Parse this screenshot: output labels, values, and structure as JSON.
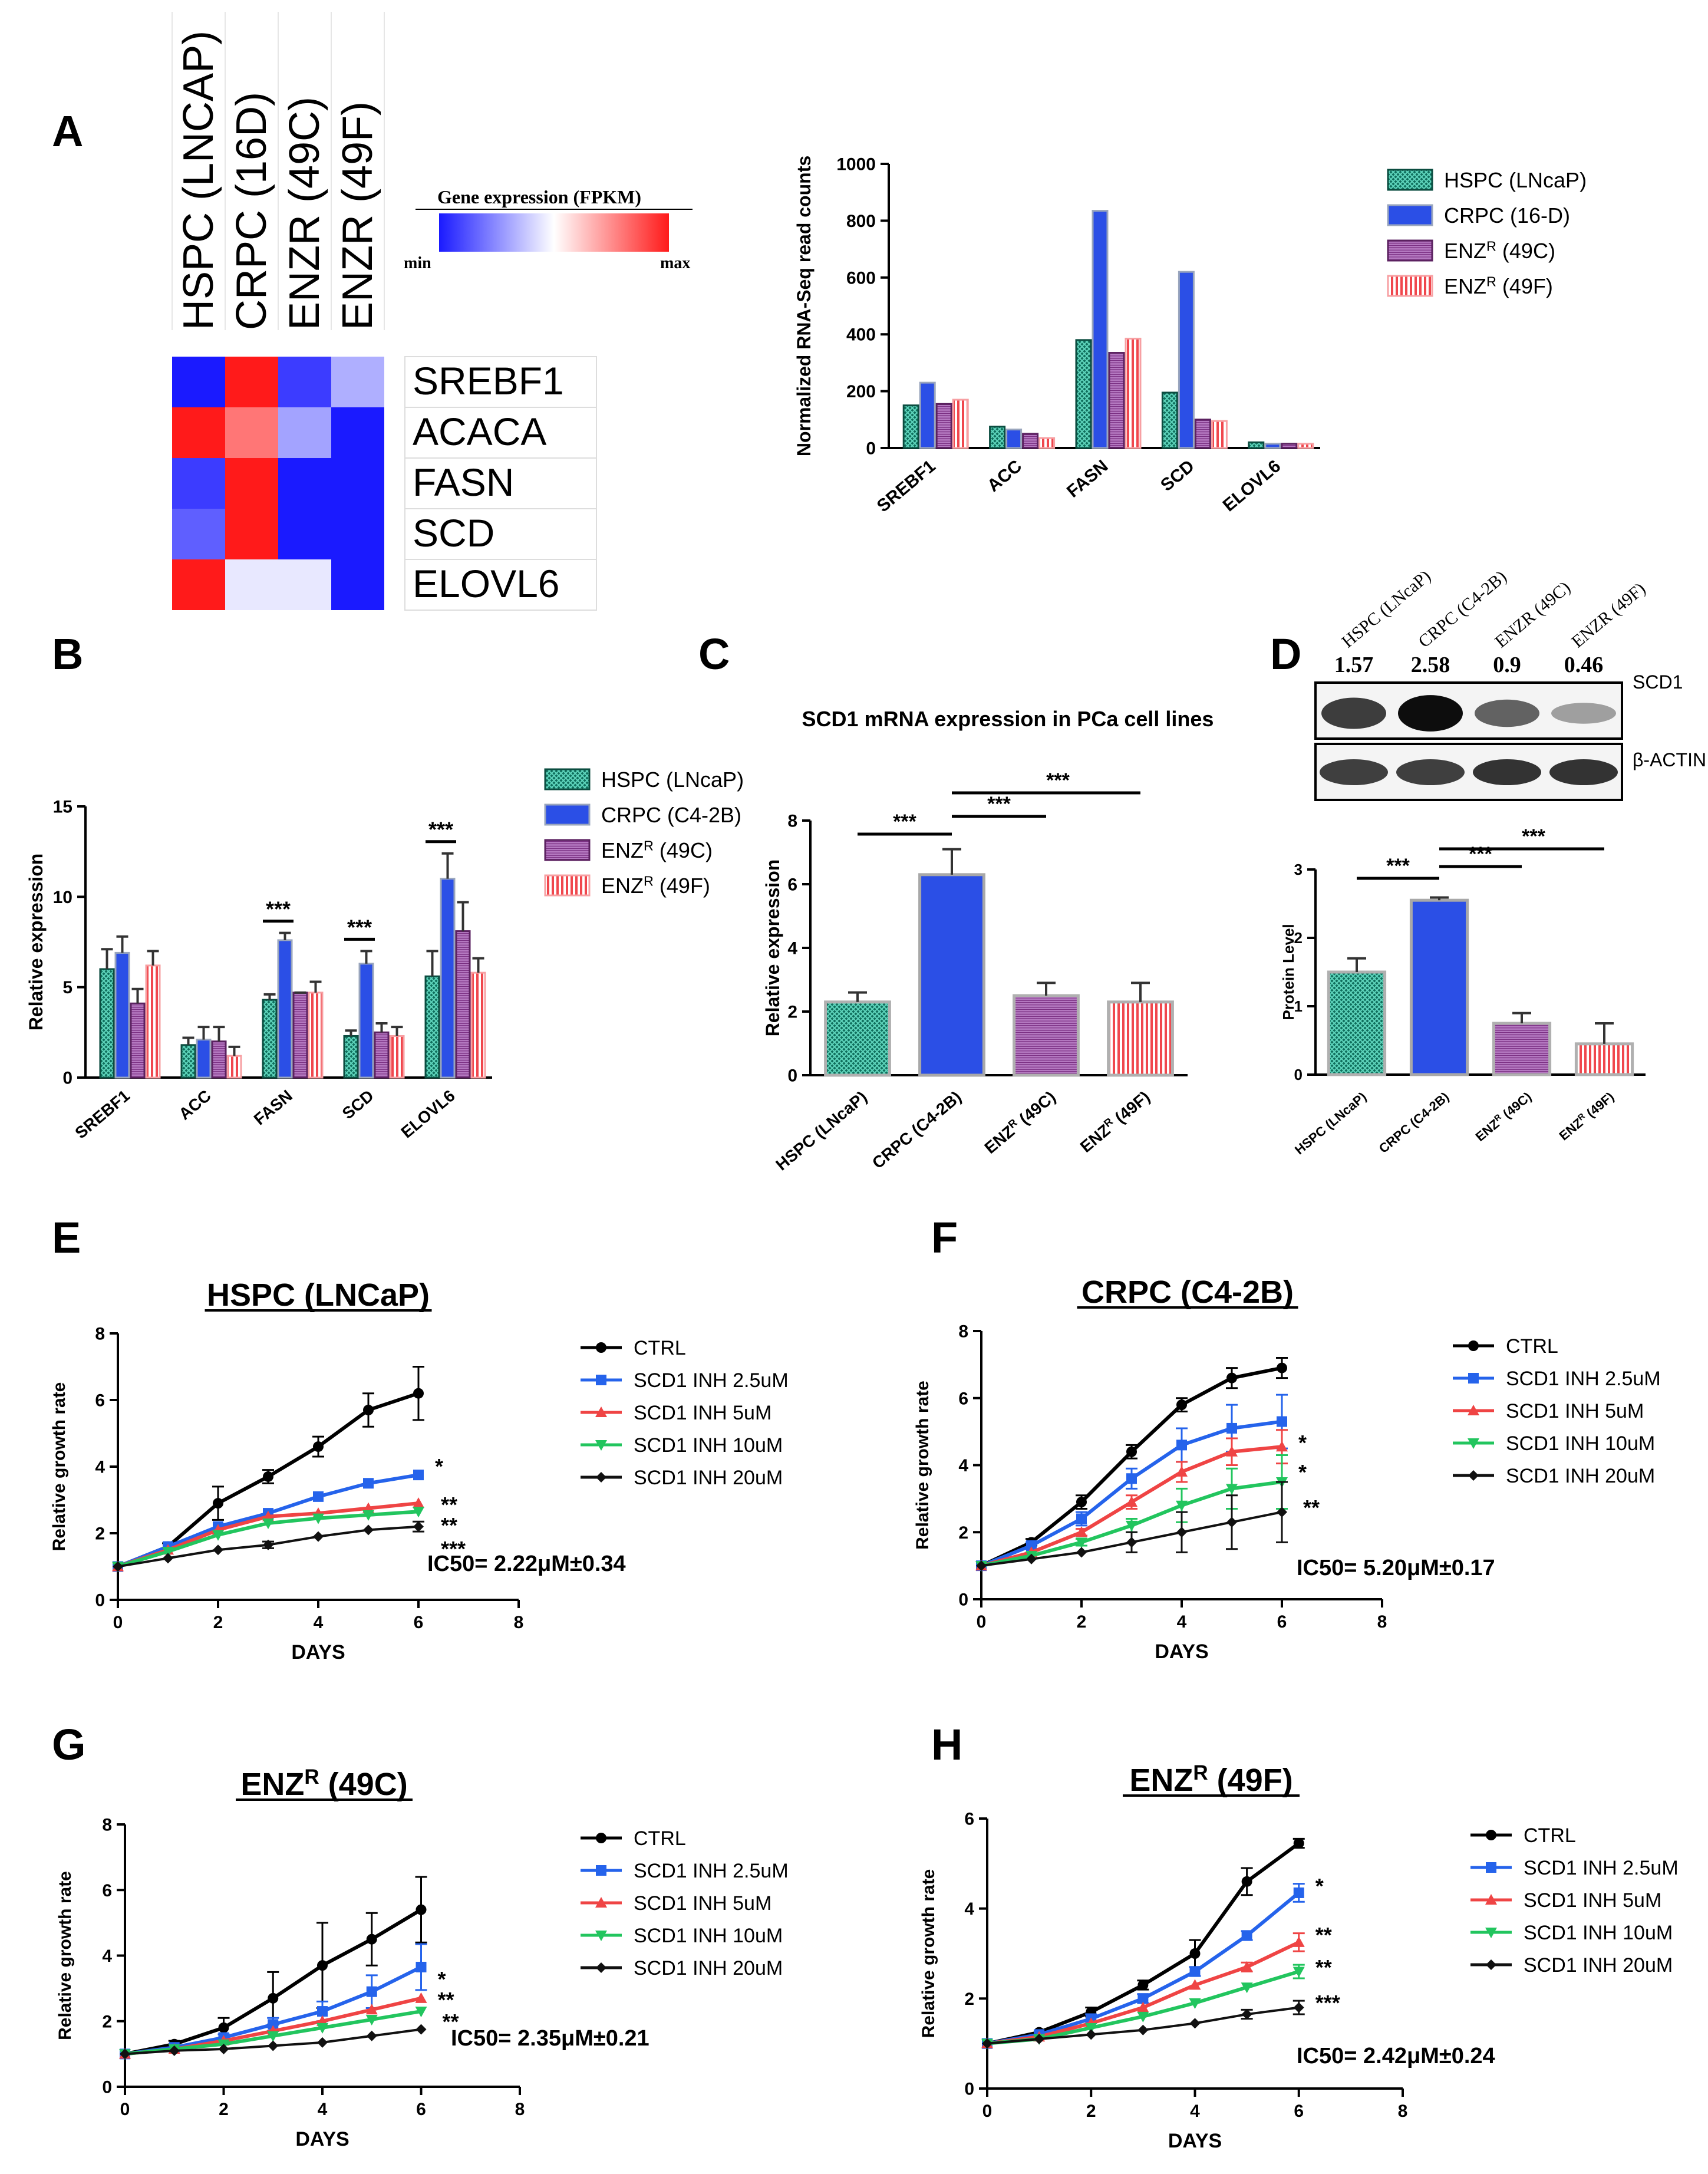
{
  "colors": {
    "hspc": "#1f8f7a",
    "crpc": "#2b4fe6",
    "enz49c": "#8b3a8f",
    "enz49f": "#f26d6d",
    "ctrl": "#000000",
    "inh25": "#2563eb",
    "inh5": "#ef4444",
    "inh10": "#22c55e",
    "inh20": "#111111",
    "heat_low": "#1a1aff",
    "heat_mid": "#ffffff",
    "heat_high": "#ff1a1a"
  },
  "panels": {
    "A": "A",
    "B": "B",
    "C": "C",
    "D": "D",
    "E": "E",
    "F": "F",
    "G": "G",
    "H": "H"
  },
  "heatmap": {
    "columns": [
      "HSPC (LNCAP)",
      "CRPC (16D)",
      "ENZR (49C)",
      "ENZR (49F)"
    ],
    "rows": [
      "SREBF1",
      "ACACA",
      "FASN",
      "SCD",
      "ELOVL6"
    ],
    "values": [
      [
        -1.0,
        1.0,
        -0.85,
        -0.35
      ],
      [
        1.0,
        0.6,
        -0.4,
        -1.0
      ],
      [
        -0.85,
        1.0,
        -1.0,
        -1.0
      ],
      [
        -0.7,
        1.0,
        -1.0,
        -1.0
      ],
      [
        1.0,
        -0.1,
        -0.1,
        -1.0
      ]
    ],
    "legend_title": "Gene expression (FPKM)",
    "legend_min": "min",
    "legend_max": "max"
  },
  "chart_data": [
    {
      "id": "A-bar",
      "type": "bar",
      "ylabel": "Normalized RNA-Seq read counts",
      "ylim": [
        0,
        1000
      ],
      "yticks": [
        "0",
        "200",
        "400",
        "600",
        "800",
        "1000"
      ],
      "categories": [
        "SREBF1",
        "ACC",
        "FASN",
        "SCD",
        "ELOVL6"
      ],
      "series": [
        {
          "name": "HSPC (LNcaP)",
          "values": [
            150,
            75,
            380,
            195,
            20
          ]
        },
        {
          "name": "CRPC (16-D)",
          "values": [
            230,
            65,
            835,
            620,
            15
          ]
        },
        {
          "name": "ENZR (49C)",
          "values": [
            155,
            50,
            335,
            100,
            15
          ]
        },
        {
          "name": "ENZR (49F)",
          "values": [
            170,
            35,
            385,
            95,
            15
          ]
        }
      ],
      "legend": [
        "HSPC (LNcaP)",
        "CRPC (16-D)",
        "ENZᴿ (49C)",
        "ENZᴿ (49F)"
      ]
    },
    {
      "id": "B-bar",
      "type": "bar",
      "ylabel": "Relative  expression",
      "ylim": [
        0,
        15
      ],
      "yticks": [
        "0",
        "5",
        "10",
        "15"
      ],
      "categories": [
        "SREBF1",
        "ACC",
        "FASN",
        "SCD",
        "ELOVL6"
      ],
      "series": [
        {
          "name": "HSPC (LNcaP)",
          "values": [
            6.0,
            1.8,
            4.3,
            2.3,
            5.6
          ],
          "errors": [
            1.1,
            0.4,
            0.3,
            0.3,
            1.4
          ]
        },
        {
          "name": "CRPC (C4-2B)",
          "values": [
            6.9,
            2.1,
            7.6,
            6.3,
            11.0
          ],
          "errors": [
            0.9,
            0.7,
            0.4,
            0.7,
            1.4
          ]
        },
        {
          "name": "ENZR (49C)",
          "values": [
            4.1,
            2.0,
            4.7,
            2.5,
            8.1
          ],
          "errors": [
            0.8,
            0.8,
            0.0,
            0.5,
            1.6
          ]
        },
        {
          "name": "ENZR (49F)",
          "values": [
            6.2,
            1.2,
            4.7,
            2.3,
            5.8
          ],
          "errors": [
            0.8,
            0.5,
            0.6,
            0.5,
            0.8
          ]
        }
      ],
      "legend": [
        "HSPC (LNcaP)",
        "CRPC (C4-2B)",
        "ENZᴿ (49C)",
        "ENZᴿ (49F)"
      ],
      "significance": [
        {
          "category": "FASN",
          "label": "***"
        },
        {
          "category": "SCD",
          "label": "***"
        },
        {
          "category": "ELOVL6",
          "label": "***"
        }
      ]
    },
    {
      "id": "C-bar",
      "type": "bar",
      "title": "SCD1 mRNA expression in PCa cell lines",
      "ylabel": "Relative expression",
      "ylim": [
        0,
        8
      ],
      "yticks": [
        "0",
        "2",
        "4",
        "6",
        "8"
      ],
      "categories": [
        "HSPC (LNcaP)",
        "CRPC (C4-2B)",
        "ENZᴿ (49C)",
        "ENZᴿ (49F)"
      ],
      "values": [
        2.3,
        6.3,
        2.5,
        2.3
      ],
      "errors": [
        0.3,
        0.8,
        0.4,
        0.6
      ],
      "significance": [
        {
          "from": 0,
          "to": 1,
          "label": "***"
        },
        {
          "from": 1,
          "to": 2,
          "label": "***"
        },
        {
          "from": 1,
          "to": 3,
          "label": "***"
        }
      ]
    },
    {
      "id": "D-bar",
      "type": "bar",
      "ylabel": "Protein Level",
      "ylim": [
        0,
        3
      ],
      "yticks": [
        "0",
        "1",
        "2",
        "3"
      ],
      "categories": [
        "HSPC (LNcaP)",
        "CRPC (C4-2B)",
        "ENZᴿ (49C)",
        "ENZᴿ (49F)"
      ],
      "values": [
        1.5,
        2.55,
        0.75,
        0.45
      ],
      "errors": [
        0.2,
        0.04,
        0.15,
        0.3
      ],
      "significance": [
        {
          "from": 0,
          "to": 1,
          "label": "***"
        },
        {
          "from": 1,
          "to": 2,
          "label": "***"
        },
        {
          "from": 1,
          "to": 3,
          "label": "***"
        }
      ]
    },
    {
      "id": "E-line",
      "type": "line",
      "title": "HSPC (LNCaP)",
      "xlabel": "DAYS",
      "ylabel": "Relative growth rate",
      "xlim": [
        0,
        8
      ],
      "ylim": [
        0,
        8
      ],
      "xticks": [
        "0",
        "2",
        "4",
        "6",
        "8"
      ],
      "yticks": [
        "0",
        "2",
        "4",
        "6",
        "8"
      ],
      "x": [
        0,
        1,
        2,
        3,
        4,
        5,
        6
      ],
      "series": [
        {
          "name": "CTRL",
          "values": [
            1,
            1.6,
            2.9,
            3.7,
            4.6,
            5.7,
            6.2
          ],
          "errors": [
            0,
            0.1,
            0.5,
            0.2,
            0.3,
            0.5,
            0.8
          ]
        },
        {
          "name": "SCD1 INH 2.5uM",
          "values": [
            1,
            1.6,
            2.2,
            2.6,
            3.1,
            3.5,
            3.75
          ],
          "errors": [
            0,
            0,
            0,
            0,
            0,
            0,
            0
          ]
        },
        {
          "name": "SCD1 INH 5uM",
          "values": [
            1,
            1.5,
            2.1,
            2.5,
            2.6,
            2.75,
            2.9
          ],
          "errors": [
            0,
            0,
            0,
            0,
            0,
            0,
            0
          ]
        },
        {
          "name": "SCD1 INH 10uM",
          "values": [
            1,
            1.45,
            1.95,
            2.3,
            2.45,
            2.55,
            2.65
          ],
          "errors": [
            0,
            0,
            0,
            0,
            0,
            0,
            0
          ]
        },
        {
          "name": "SCD1 INH 20uM",
          "values": [
            1,
            1.25,
            1.5,
            1.65,
            1.9,
            2.1,
            2.2
          ],
          "errors": [
            0,
            0,
            0,
            0.1,
            0,
            0,
            0.15
          ]
        }
      ],
      "end_marks": [
        "*",
        "**",
        "**",
        "***"
      ],
      "ic50": "IC50= 2.22μM±0.34"
    },
    {
      "id": "F-line",
      "type": "line",
      "title": "CRPC (C4-2B)",
      "xlabel": "DAYS",
      "ylabel": "Relative growth rate",
      "xlim": [
        0,
        8
      ],
      "ylim": [
        0,
        8
      ],
      "xticks": [
        "0",
        "2",
        "4",
        "6",
        "8"
      ],
      "yticks": [
        "0",
        "2",
        "4",
        "6",
        "8"
      ],
      "x": [
        0,
        1,
        2,
        3,
        4,
        5,
        6
      ],
      "series": [
        {
          "name": "CTRL",
          "values": [
            1,
            1.7,
            2.9,
            4.4,
            5.8,
            6.6,
            6.9
          ],
          "errors": [
            0,
            0.1,
            0.2,
            0.2,
            0.2,
            0.3,
            0.3
          ]
        },
        {
          "name": "SCD1 INH 2.5uM",
          "values": [
            1,
            1.6,
            2.4,
            3.6,
            4.6,
            5.1,
            5.3
          ],
          "errors": [
            0,
            0.1,
            0.2,
            0.3,
            0.5,
            0.7,
            0.8
          ]
        },
        {
          "name": "SCD1 INH 5uM",
          "values": [
            1,
            1.4,
            2.0,
            2.9,
            3.8,
            4.4,
            4.55
          ],
          "errors": [
            0,
            0,
            0.1,
            0.2,
            0.3,
            0.4,
            0.5
          ]
        },
        {
          "name": "SCD1 INH 10uM",
          "values": [
            1,
            1.3,
            1.7,
            2.2,
            2.8,
            3.3,
            3.5
          ],
          "errors": [
            0,
            0,
            0.1,
            0.2,
            0.5,
            0.6,
            0.8
          ]
        },
        {
          "name": "SCD1 INH 20uM",
          "values": [
            1,
            1.2,
            1.4,
            1.7,
            2.0,
            2.3,
            2.6
          ],
          "errors": [
            0,
            0,
            0,
            0.3,
            0.6,
            0.8,
            0.9
          ]
        }
      ],
      "end_marks": [
        "*",
        "*",
        "**"
      ],
      "ic50": "IC50= 5.20μM±0.17"
    },
    {
      "id": "G-line",
      "type": "line",
      "title": "ENZᴿ (49C)",
      "xlabel": "DAYS",
      "ylabel": "Relative growth rate",
      "xlim": [
        0,
        8
      ],
      "ylim": [
        0,
        8
      ],
      "xticks": [
        "0",
        "2",
        "4",
        "6",
        "8"
      ],
      "yticks": [
        "0",
        "2",
        "4",
        "6",
        "8"
      ],
      "x": [
        0,
        1,
        2,
        3,
        4,
        5,
        6
      ],
      "series": [
        {
          "name": "CTRL",
          "values": [
            1,
            1.3,
            1.8,
            2.7,
            3.7,
            4.5,
            5.4
          ],
          "errors": [
            0,
            0.1,
            0.3,
            0.8,
            1.3,
            0.8,
            1.0
          ]
        },
        {
          "name": "SCD1 INH 2.5uM",
          "values": [
            1,
            1.2,
            1.5,
            1.9,
            2.3,
            2.9,
            3.65
          ],
          "errors": [
            0,
            0,
            0.1,
            0.2,
            0.3,
            0.5,
            0.7
          ]
        },
        {
          "name": "SCD1 INH 5uM",
          "values": [
            1,
            1.15,
            1.4,
            1.7,
            2.0,
            2.35,
            2.7
          ],
          "errors": [
            0,
            0,
            0,
            0,
            0,
            0,
            0
          ]
        },
        {
          "name": "SCD1 INH 10uM",
          "values": [
            1,
            1.15,
            1.3,
            1.55,
            1.8,
            2.05,
            2.3
          ],
          "errors": [
            0,
            0,
            0,
            0,
            0,
            0,
            0
          ]
        },
        {
          "name": "SCD1 INH 20uM",
          "values": [
            1,
            1.1,
            1.15,
            1.25,
            1.35,
            1.55,
            1.75
          ],
          "errors": [
            0,
            0,
            0,
            0,
            0,
            0,
            0
          ]
        }
      ],
      "end_marks": [
        "*",
        "**",
        "**"
      ],
      "ic50": "IC50= 2.35μM±0.21"
    },
    {
      "id": "H-line",
      "type": "line",
      "title": "ENZᴿ (49F)",
      "xlabel": "DAYS",
      "ylabel": "Relative growth rate",
      "xlim": [
        0,
        8
      ],
      "ylim": [
        0,
        6
      ],
      "xticks": [
        "0",
        "2",
        "4",
        "6",
        "8"
      ],
      "yticks": [
        "0",
        "2",
        "4",
        "6"
      ],
      "x": [
        0,
        1,
        2,
        3,
        4,
        5,
        6
      ],
      "series": [
        {
          "name": "CTRL",
          "values": [
            1,
            1.25,
            1.7,
            2.3,
            3.0,
            4.6,
            5.45
          ],
          "errors": [
            0,
            0,
            0.1,
            0.1,
            0.3,
            0.3,
            0.1
          ]
        },
        {
          "name": "SCD1 INH 2.5uM",
          "values": [
            1,
            1.2,
            1.55,
            2.0,
            2.6,
            3.4,
            4.35
          ],
          "errors": [
            0,
            0,
            0.1,
            0.1,
            0.1,
            0.1,
            0.2
          ]
        },
        {
          "name": "SCD1 INH 5uM",
          "values": [
            1,
            1.15,
            1.45,
            1.8,
            2.3,
            2.7,
            3.25
          ],
          "errors": [
            0,
            0,
            0,
            0,
            0,
            0.1,
            0.2
          ]
        },
        {
          "name": "SCD1 INH 10uM",
          "values": [
            1,
            1.1,
            1.35,
            1.6,
            1.9,
            2.25,
            2.6
          ],
          "errors": [
            0,
            0,
            0,
            0,
            0,
            0,
            0.15
          ]
        },
        {
          "name": "SCD1 INH 20uM",
          "values": [
            1,
            1.1,
            1.2,
            1.3,
            1.45,
            1.65,
            1.8
          ],
          "errors": [
            0,
            0,
            0,
            0,
            0,
            0.1,
            0.15
          ]
        }
      ],
      "end_marks": [
        "*",
        "**",
        "**",
        "***"
      ],
      "ic50": "IC50= 2.42μM±0.24"
    }
  ],
  "western": {
    "lanes": [
      "HSPC (LNcaP)",
      "CRPC (C4-2B)",
      "ENZR (49C)",
      "ENZR (49F)"
    ],
    "values": [
      "1.57",
      "2.58",
      "0.9",
      "0.46"
    ],
    "band_labels": [
      "SCD1",
      "β-ACTIN"
    ],
    "scd1_intensity": [
      0.75,
      0.95,
      0.6,
      0.35
    ],
    "actin_intensity": [
      0.8,
      0.8,
      0.85,
      0.85
    ]
  }
}
